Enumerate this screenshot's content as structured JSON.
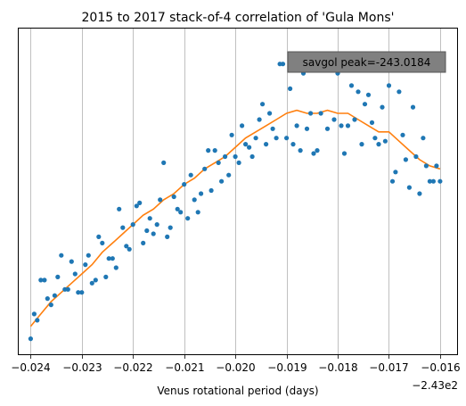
{
  "chart_data": {
    "type": "scatter",
    "title": "2015 to 2017 stack-of-4 correlation of 'Gula Mons'",
    "xlabel": "Venus rotational period (days)",
    "ylabel": "",
    "x_offset_label": "−2.43e2",
    "x_ticks": [
      -0.024,
      -0.023,
      -0.022,
      -0.021,
      -0.02,
      -0.019,
      -0.018,
      -0.017,
      -0.016
    ],
    "x_tick_labels": [
      "−0.024",
      "−0.023",
      "−0.022",
      "−0.021",
      "−0.020",
      "−0.019",
      "−0.018",
      "−0.017",
      "−0.016"
    ],
    "xlim": [
      -0.02425,
      -0.01565
    ],
    "ylim": [
      0.0,
      1.0
    ],
    "y_axis_shown": false,
    "grid": "vertical",
    "annotation": "savgol peak=-243.0184",
    "colors": {
      "scatter": "#1f77b4",
      "line": "#ff7f0e",
      "annotation_bg": "#808080"
    },
    "series": [
      {
        "kind": "scatter",
        "points": [
          [
            -0.024,
            0.03
          ],
          [
            -0.02393,
            0.11
          ],
          [
            -0.02387,
            0.09
          ],
          [
            -0.0238,
            0.22
          ],
          [
            -0.02373,
            0.22
          ],
          [
            -0.02367,
            0.16
          ],
          [
            -0.0236,
            0.14
          ],
          [
            -0.02353,
            0.17
          ],
          [
            -0.02347,
            0.23
          ],
          [
            -0.0234,
            0.3
          ],
          [
            -0.02333,
            0.19
          ],
          [
            -0.02327,
            0.19
          ],
          [
            -0.0232,
            0.28
          ],
          [
            -0.02313,
            0.24
          ],
          [
            -0.02307,
            0.18
          ],
          [
            -0.023,
            0.18
          ],
          [
            -0.02293,
            0.27
          ],
          [
            -0.02287,
            0.3
          ],
          [
            -0.0228,
            0.21
          ],
          [
            -0.02273,
            0.22
          ],
          [
            -0.02267,
            0.36
          ],
          [
            -0.0226,
            0.34
          ],
          [
            -0.02253,
            0.23
          ],
          [
            -0.02247,
            0.29
          ],
          [
            -0.0224,
            0.29
          ],
          [
            -0.02233,
            0.26
          ],
          [
            -0.02227,
            0.45
          ],
          [
            -0.0222,
            0.39
          ],
          [
            -0.02213,
            0.33
          ],
          [
            -0.02207,
            0.32
          ],
          [
            -0.022,
            0.4
          ],
          [
            -0.02193,
            0.46
          ],
          [
            -0.02187,
            0.47
          ],
          [
            -0.0218,
            0.34
          ],
          [
            -0.02173,
            0.38
          ],
          [
            -0.02167,
            0.42
          ],
          [
            -0.0216,
            0.37
          ],
          [
            -0.02153,
            0.4
          ],
          [
            -0.02147,
            0.48
          ],
          [
            -0.0214,
            0.6
          ],
          [
            -0.02133,
            0.36
          ],
          [
            -0.02127,
            0.39
          ],
          [
            -0.0212,
            0.49
          ],
          [
            -0.02113,
            0.45
          ],
          [
            -0.02107,
            0.44
          ],
          [
            -0.021,
            0.53
          ],
          [
            -0.02093,
            0.42
          ],
          [
            -0.02087,
            0.56
          ],
          [
            -0.0208,
            0.48
          ],
          [
            -0.02073,
            0.44
          ],
          [
            -0.02067,
            0.5
          ],
          [
            -0.0206,
            0.58
          ],
          [
            -0.02053,
            0.64
          ],
          [
            -0.02047,
            0.51
          ],
          [
            -0.0204,
            0.64
          ],
          [
            -0.02033,
            0.6
          ],
          [
            -0.02027,
            0.54
          ],
          [
            -0.0202,
            0.62
          ],
          [
            -0.02013,
            0.56
          ],
          [
            -0.02007,
            0.69
          ],
          [
            -0.02,
            0.62
          ],
          [
            -0.01993,
            0.6
          ],
          [
            -0.01987,
            0.72
          ],
          [
            -0.0198,
            0.66
          ],
          [
            -0.01973,
            0.65
          ],
          [
            -0.01967,
            0.62
          ],
          [
            -0.0196,
            0.68
          ],
          [
            -0.01953,
            0.74
          ],
          [
            -0.01947,
            0.79
          ],
          [
            -0.0194,
            0.66
          ],
          [
            -0.01933,
            0.76
          ],
          [
            -0.01927,
            0.71
          ],
          [
            -0.0192,
            0.68
          ],
          [
            -0.01913,
            0.92
          ],
          [
            -0.01907,
            0.92
          ],
          [
            -0.019,
            0.68
          ],
          [
            -0.01893,
            0.84
          ],
          [
            -0.01887,
            0.66
          ],
          [
            -0.0188,
            0.72
          ],
          [
            -0.01873,
            0.64
          ],
          [
            -0.01867,
            0.89
          ],
          [
            -0.0186,
            0.71
          ],
          [
            -0.01853,
            0.76
          ],
          [
            -0.01847,
            0.63
          ],
          [
            -0.0184,
            0.64
          ],
          [
            -0.01833,
            0.76
          ],
          [
            -0.01827,
            0.95
          ],
          [
            -0.0182,
            0.71
          ],
          [
            -0.01813,
            0.9
          ],
          [
            -0.01807,
            0.74
          ],
          [
            -0.018,
            0.89
          ],
          [
            -0.01793,
            0.72
          ],
          [
            -0.01787,
            0.63
          ],
          [
            -0.0178,
            0.72
          ],
          [
            -0.01773,
            0.85
          ],
          [
            -0.01767,
            0.74
          ],
          [
            -0.0176,
            0.83
          ],
          [
            -0.01753,
            0.66
          ],
          [
            -0.01747,
            0.79
          ],
          [
            -0.0174,
            0.82
          ],
          [
            -0.01733,
            0.73
          ],
          [
            -0.01727,
            0.68
          ],
          [
            -0.0172,
            0.66
          ],
          [
            -0.01713,
            0.78
          ],
          [
            -0.01707,
            0.67
          ],
          [
            -0.017,
            0.85
          ],
          [
            -0.01693,
            0.54
          ],
          [
            -0.01687,
            0.57
          ],
          [
            -0.0168,
            0.83
          ],
          [
            -0.01673,
            0.69
          ],
          [
            -0.01667,
            0.61
          ],
          [
            -0.0166,
            0.52
          ],
          [
            -0.01653,
            0.78
          ],
          [
            -0.01647,
            0.62
          ],
          [
            -0.0164,
            0.5
          ],
          [
            -0.01633,
            0.68
          ],
          [
            -0.01627,
            0.59
          ],
          [
            -0.0162,
            0.54
          ],
          [
            -0.01613,
            0.54
          ],
          [
            -0.01607,
            0.59
          ],
          [
            -0.016,
            0.54
          ]
        ]
      },
      {
        "kind": "line",
        "name": "savgol",
        "points": [
          [
            -0.024,
            0.07
          ],
          [
            -0.0238,
            0.11
          ],
          [
            -0.0236,
            0.15
          ],
          [
            -0.0234,
            0.18
          ],
          [
            -0.0232,
            0.21
          ],
          [
            -0.023,
            0.24
          ],
          [
            -0.0228,
            0.27
          ],
          [
            -0.0226,
            0.31
          ],
          [
            -0.0224,
            0.34
          ],
          [
            -0.0222,
            0.37
          ],
          [
            -0.022,
            0.4
          ],
          [
            -0.0218,
            0.43
          ],
          [
            -0.0216,
            0.45
          ],
          [
            -0.0214,
            0.48
          ],
          [
            -0.0212,
            0.5
          ],
          [
            -0.021,
            0.53
          ],
          [
            -0.0208,
            0.55
          ],
          [
            -0.0206,
            0.58
          ],
          [
            -0.0204,
            0.6
          ],
          [
            -0.0202,
            0.62
          ],
          [
            -0.02,
            0.65
          ],
          [
            -0.0198,
            0.68
          ],
          [
            -0.0196,
            0.7
          ],
          [
            -0.0194,
            0.72
          ],
          [
            -0.0192,
            0.74
          ],
          [
            -0.019,
            0.76
          ],
          [
            -0.0188,
            0.77
          ],
          [
            -0.0186,
            0.76
          ],
          [
            -0.0184,
            0.76
          ],
          [
            -0.0182,
            0.77
          ],
          [
            -0.018,
            0.76
          ],
          [
            -0.0178,
            0.76
          ],
          [
            -0.0176,
            0.74
          ],
          [
            -0.0174,
            0.72
          ],
          [
            -0.0172,
            0.7
          ],
          [
            -0.017,
            0.7
          ],
          [
            -0.0168,
            0.67
          ],
          [
            -0.0166,
            0.64
          ],
          [
            -0.0164,
            0.61
          ],
          [
            -0.0162,
            0.59
          ],
          [
            -0.016,
            0.58
          ]
        ]
      }
    ]
  }
}
